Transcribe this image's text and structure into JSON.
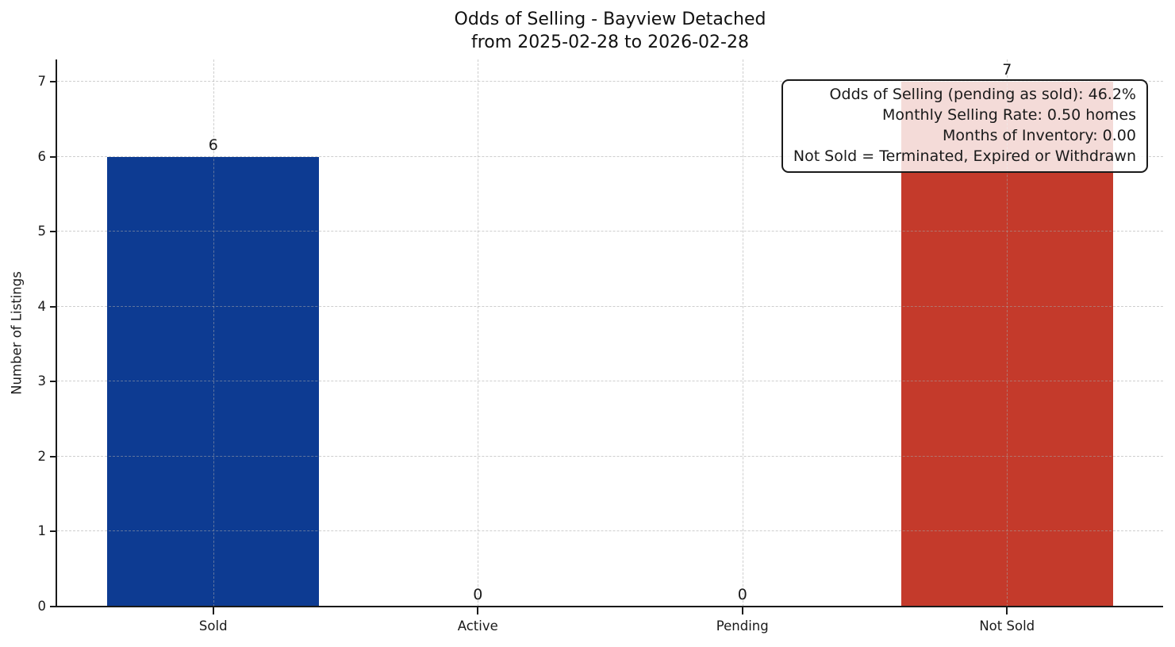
{
  "chart_data": {
    "type": "bar",
    "title": "Odds of Selling - Bayview Detached",
    "subtitle": "from 2025-02-28 to 2026-02-28",
    "categories": [
      "Sold",
      "Active",
      "Pending",
      "Not Sold"
    ],
    "values": [
      6,
      0,
      0,
      7
    ],
    "value_labels": [
      "6",
      "0",
      "0",
      "7"
    ],
    "bar_colors": [
      "#0d3b92",
      null,
      null,
      "#c43a2b"
    ],
    "xlabel": "",
    "ylabel": "Number of Listings",
    "ylim": [
      0,
      7.3
    ],
    "yticks": [
      0,
      1,
      2,
      3,
      4,
      5,
      6,
      7
    ],
    "bar_width_fraction": 0.8,
    "grid": {
      "visible": true,
      "axis": "both",
      "style": "dashed"
    },
    "legend": null,
    "annotation": {
      "position": "top-right",
      "align": "right",
      "lines": [
        "Odds of Selling (pending as sold): 46.2%",
        "Monthly Selling Rate: 0.50 homes",
        "Months of Inventory: 0.00",
        "Not Sold = Terminated, Expired or Withdrawn"
      ]
    },
    "colors": {
      "sold_bar": "#0d3b92",
      "not_sold_bar": "#c43a2b",
      "axis": "#1a1a1a",
      "grid": "#c9c9c9",
      "background": "#ffffff",
      "text": "#111111"
    }
  }
}
